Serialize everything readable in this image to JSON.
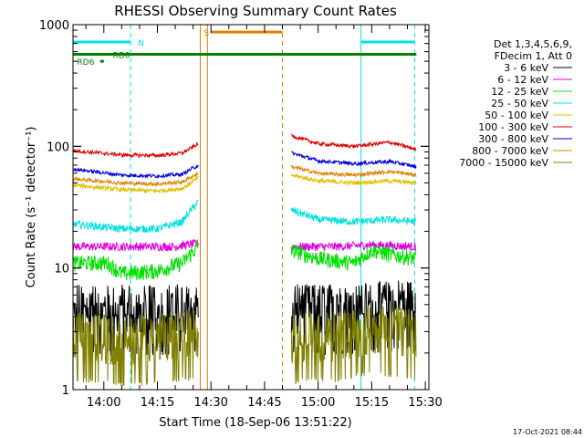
{
  "chart_data": {
    "type": "line",
    "title": "RHESSI Observing Summary Count Rates",
    "xlabel": "Start Time (18-Sep-06 13:51:22)",
    "ylabel": "Count Rate (s⁻¹ detector⁻¹)",
    "y_scale": "log",
    "ylim": [
      1,
      1000
    ],
    "y_ticks": [
      {
        "value": 1,
        "label": "1"
      },
      {
        "value": 10,
        "label": "10"
      },
      {
        "value": 100,
        "label": "100"
      },
      {
        "value": 1000,
        "label": "1000"
      }
    ],
    "xlim": [
      "13:51:22",
      "15:31:00"
    ],
    "x_ticks": [
      "14:00",
      "14:15",
      "14:30",
      "14:45",
      "15:00",
      "15:15",
      "15:30"
    ],
    "legend_header": [
      "Det 1,3,4,5,6,9,",
      "FDecim 1, Att 0"
    ],
    "legend_position": "right",
    "timestamp": "17-Oct-2021 08:44",
    "series": [
      {
        "name": "3 - 6 keV",
        "color": "#000000",
        "level": 4.0,
        "noise": 0.45,
        "segments": [
          {
            "x": [
              "13:51:22",
              "14:05",
              "14:20",
              "14:26:30"
            ],
            "y": [
              4.0,
              4.0,
              4.0,
              4.0
            ]
          },
          {
            "x": [
              "14:52:30",
              "15:05",
              "15:15",
              "15:25",
              "15:27:30"
            ],
            "y": [
              4.0,
              4.0,
              4.2,
              4.4,
              4.2
            ]
          }
        ]
      },
      {
        "name": "6 - 12 keV",
        "color": "#e000e0",
        "level": 15,
        "noise": 0.08,
        "segments": [
          {
            "x": [
              "13:51:22",
              "14:05",
              "14:20",
              "14:26:30"
            ],
            "y": [
              15,
              15,
              15,
              16
            ]
          },
          {
            "x": [
              "14:52:30",
              "15:05",
              "15:15",
              "15:27:30"
            ],
            "y": [
              15,
              15,
              15.5,
              15
            ]
          }
        ]
      },
      {
        "name": "12 - 25 keV",
        "color": "#00e000",
        "level": 11,
        "noise": 0.15,
        "segments": [
          {
            "x": [
              "13:51:22",
              "14:01",
              "14:05",
              "14:15",
              "14:22",
              "14:26:30"
            ],
            "y": [
              11,
              11,
              9,
              9.5,
              11,
              15
            ]
          },
          {
            "x": [
              "14:52:30",
              "15:00",
              "15:10",
              "15:15",
              "15:20",
              "15:27:30"
            ],
            "y": [
              14,
              12,
              11,
              14,
              13,
              12
            ]
          }
        ]
      },
      {
        "name": "25 - 50 keV",
        "color": "#00e0e0",
        "level": 23,
        "noise": 0.07,
        "segments": [
          {
            "x": [
              "13:51:22",
              "14:05",
              "14:15",
              "14:22",
              "14:26:30"
            ],
            "y": [
              23,
              21,
              21,
              24,
              35
            ]
          },
          {
            "x": [
              "14:52:30",
              "15:00",
              "15:10",
              "15:20",
              "15:27:30"
            ],
            "y": [
              30,
              25,
              24,
              25,
              24
            ]
          }
        ]
      },
      {
        "name": "50 - 100 keV",
        "color": "#e0c000",
        "level": 44,
        "noise": 0.04,
        "segments": [
          {
            "x": [
              "13:51:22",
              "14:05",
              "14:15",
              "14:22",
              "14:26:30"
            ],
            "y": [
              48,
              44,
              43,
              45,
              55
            ]
          },
          {
            "x": [
              "14:52:30",
              "15:00",
              "15:10",
              "15:20",
              "15:27:30"
            ],
            "y": [
              58,
              52,
              50,
              52,
              50
            ]
          }
        ]
      },
      {
        "name": "100 - 300 keV",
        "color": "#e00000",
        "level": 85,
        "noise": 0.035,
        "segments": [
          {
            "x": [
              "13:51:22",
              "14:05",
              "14:15",
              "14:22",
              "14:26:30"
            ],
            "y": [
              92,
              85,
              84,
              88,
              105
            ]
          },
          {
            "x": [
              "14:52:30",
              "15:00",
              "15:10",
              "15:20",
              "15:27:30"
            ],
            "y": [
              122,
              105,
              100,
              108,
              94
            ]
          }
        ]
      },
      {
        "name": "300 - 800 keV",
        "color": "#0000e0",
        "level": 60,
        "noise": 0.035,
        "segments": [
          {
            "x": [
              "13:51:22",
              "14:05",
              "14:15",
              "14:22",
              "14:26:30"
            ],
            "y": [
              65,
              58,
              57,
              59,
              70
            ]
          },
          {
            "x": [
              "14:52:30",
              "15:00",
              "15:10",
              "15:20",
              "15:27:30"
            ],
            "y": [
              88,
              76,
              72,
              75,
              68
            ]
          }
        ]
      },
      {
        "name": "800 - 7000 keV",
        "color": "#e08000",
        "level": 52,
        "noise": 0.035,
        "segments": [
          {
            "x": [
              "13:51:22",
              "14:05",
              "14:15",
              "14:22",
              "14:26:30"
            ],
            "y": [
              54,
              50,
              49,
              51,
              60
            ]
          },
          {
            "x": [
              "14:52:30",
              "15:00",
              "15:10",
              "15:20",
              "15:27:30"
            ],
            "y": [
              68,
              60,
              58,
              62,
              58
            ]
          }
        ]
      },
      {
        "name": "7000 - 15000 keV",
        "color": "#808000",
        "level": 2.4,
        "noise": 0.6,
        "segments": [
          {
            "x": [
              "13:51:22",
              "14:05",
              "14:20",
              "14:26:30"
            ],
            "y": [
              2.4,
              2.2,
              2.4,
              2.5
            ]
          },
          {
            "x": [
              "14:52:30",
              "15:05",
              "15:15",
              "15:27:30"
            ],
            "y": [
              2.3,
              2.4,
              2.7,
              2.5
            ]
          }
        ]
      }
    ],
    "annotations": {
      "vlines_cyan_solid": [
        "13:51:22",
        "15:12:00"
      ],
      "vlines_cyan_dashed": [
        "14:07:30",
        "15:27:00"
      ],
      "vlines_orange_solid": [
        "14:27:00",
        "14:29:00"
      ],
      "vlines_orange_dashed": [
        "14:50:00"
      ],
      "bars": [
        {
          "label": "",
          "color": "#00e0e0",
          "y": 720,
          "x": [
            [
              "13:51:22",
              "14:07:30"
            ],
            [
              "15:12:00",
              "15:27:00"
            ]
          ]
        },
        {
          "label": "N",
          "color": "#00e0e0",
          "y": 720,
          "label_x": "14:09:30"
        },
        {
          "label": "S",
          "color": "#e08000",
          "y": 870,
          "x": [
            [
              "14:30:00",
              "14:50:00"
            ]
          ],
          "label_x": "14:28:00"
        },
        {
          "label": "RD0",
          "color": "#008000",
          "y": 570,
          "x": [
            [
              "13:51:22",
              "15:27:30"
            ]
          ],
          "label_x": "14:02:30"
        },
        {
          "label": "RD6",
          "color": "#008000",
          "y": 500,
          "x": [
            [
              "13:59:00",
              "14:00:00"
            ]
          ],
          "label_x": "13:52:30"
        }
      ]
    }
  }
}
